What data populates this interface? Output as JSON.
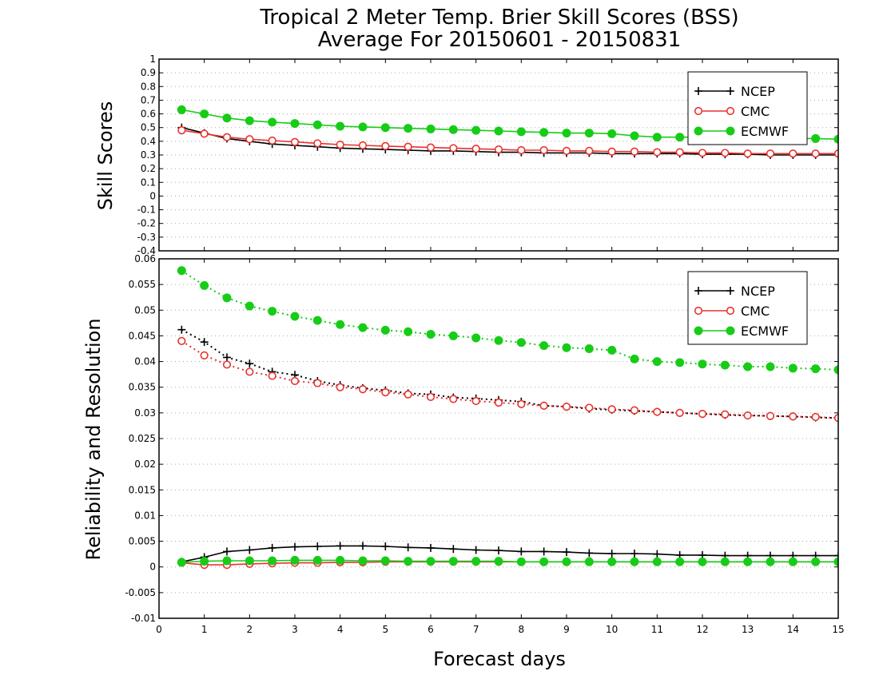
{
  "chart_data": [
    {
      "type": "line",
      "title": "Tropical 2 Meter Temp. Brier Skill Scores (BSS)",
      "subtitle": "Average For 20150601 - 20150831",
      "ylabel": "Skill Scores",
      "xlabel": "",
      "xlim": [
        0,
        15
      ],
      "ylim": [
        -0.4,
        1
      ],
      "yticks": [
        "1",
        "0.9",
        "0.8",
        "0.7",
        "0.6",
        "0.5",
        "0.4",
        "0.3",
        "0.2",
        "0.1",
        "0",
        "-0.1",
        "-0.2",
        "-0.3",
        "-0.4"
      ],
      "grid": true,
      "legend": "top-right",
      "x": [
        0.5,
        1,
        1.5,
        2,
        2.5,
        3,
        3.5,
        4,
        4.5,
        5,
        5.5,
        6,
        6.5,
        7,
        7.5,
        8,
        8.5,
        9,
        9.5,
        10,
        10.5,
        11,
        11.5,
        12,
        12.5,
        13,
        13.5,
        14,
        14.5,
        15
      ],
      "series": [
        {
          "name": "NCEP",
          "color": "#000000",
          "marker": "plus",
          "line": "solid",
          "values": [
            0.5,
            0.46,
            0.42,
            0.4,
            0.38,
            0.37,
            0.36,
            0.35,
            0.345,
            0.34,
            0.335,
            0.33,
            0.33,
            0.325,
            0.32,
            0.32,
            0.315,
            0.315,
            0.315,
            0.31,
            0.31,
            0.31,
            0.31,
            0.305,
            0.305,
            0.305,
            0.3,
            0.3,
            0.3,
            0.3
          ]
        },
        {
          "name": "CMC",
          "color": "#e8332f",
          "marker": "open-circle",
          "line": "solid",
          "values": [
            0.48,
            0.455,
            0.43,
            0.415,
            0.405,
            0.395,
            0.385,
            0.375,
            0.37,
            0.365,
            0.36,
            0.355,
            0.35,
            0.345,
            0.34,
            0.335,
            0.335,
            0.33,
            0.33,
            0.325,
            0.325,
            0.32,
            0.32,
            0.315,
            0.315,
            0.31,
            0.31,
            0.31,
            0.31,
            0.31
          ]
        },
        {
          "name": "ECMWF",
          "color": "#17cc17",
          "marker": "filled-circle",
          "line": "solid",
          "values": [
            0.63,
            0.6,
            0.57,
            0.55,
            0.54,
            0.53,
            0.52,
            0.51,
            0.505,
            0.5,
            0.495,
            0.49,
            0.485,
            0.48,
            0.475,
            0.47,
            0.465,
            0.46,
            0.46,
            0.455,
            0.44,
            0.43,
            0.43,
            0.43,
            0.43,
            0.425,
            0.425,
            0.42,
            0.42,
            0.415
          ]
        }
      ]
    },
    {
      "type": "line",
      "title": "",
      "xlabel": "Forecast days",
      "ylabel": "Reliability and Resolution",
      "xlim": [
        0,
        15
      ],
      "ylim": [
        -0.01,
        0.06
      ],
      "xticks": [
        "0",
        "1",
        "2",
        "3",
        "4",
        "5",
        "6",
        "7",
        "8",
        "9",
        "10",
        "11",
        "12",
        "13",
        "14",
        "15"
      ],
      "yticks": [
        "0.06",
        "0.055",
        "0.05",
        "0.045",
        "0.04",
        "0.035",
        "0.03",
        "0.025",
        "0.02",
        "0.015",
        "0.01",
        "0.005",
        "0",
        "-0.005",
        "-0.01"
      ],
      "grid": true,
      "legend": "top-right",
      "x": [
        0.5,
        1,
        1.5,
        2,
        2.5,
        3,
        3.5,
        4,
        4.5,
        5,
        5.5,
        6,
        6.5,
        7,
        7.5,
        8,
        8.5,
        9,
        9.5,
        10,
        10.5,
        11,
        11.5,
        12,
        12.5,
        13,
        13.5,
        14,
        14.5,
        15
      ],
      "series": [
        {
          "name": "NCEP",
          "color": "#000000",
          "marker": "plus",
          "line": "dotted",
          "values": [
            0.0462,
            0.0438,
            0.0408,
            0.0396,
            0.038,
            0.0374,
            0.0362,
            0.0354,
            0.0348,
            0.0344,
            0.0338,
            0.0336,
            0.033,
            0.0328,
            0.0325,
            0.0322,
            0.0314,
            0.0312,
            0.0308,
            0.0306,
            0.0304,
            0.0302,
            0.03,
            0.0298,
            0.0296,
            0.0295,
            0.0294,
            0.0293,
            0.0291,
            0.029
          ]
        },
        {
          "name": "CMC",
          "color": "#e8332f",
          "marker": "open-circle",
          "line": "dotted",
          "values": [
            0.044,
            0.0412,
            0.0394,
            0.038,
            0.0372,
            0.0362,
            0.0358,
            0.035,
            0.0346,
            0.034,
            0.0336,
            0.0331,
            0.0327,
            0.0323,
            0.032,
            0.0317,
            0.0314,
            0.0312,
            0.031,
            0.0307,
            0.0305,
            0.0302,
            0.03,
            0.0298,
            0.0297,
            0.0295,
            0.0294,
            0.0293,
            0.0292,
            0.029
          ]
        },
        {
          "name": "ECMWF",
          "color": "#17cc17",
          "marker": "filled-circle",
          "line": "dotted",
          "values": [
            0.0577,
            0.0548,
            0.0524,
            0.0508,
            0.0498,
            0.0488,
            0.048,
            0.0472,
            0.0466,
            0.0461,
            0.0458,
            0.0453,
            0.045,
            0.0446,
            0.0441,
            0.0437,
            0.0431,
            0.0427,
            0.0425,
            0.0422,
            0.0405,
            0.04,
            0.0398,
            0.0395,
            0.0393,
            0.039,
            0.039,
            0.0387,
            0.0386,
            0.0384
          ]
        },
        {
          "name": "NCEP",
          "color": "#000000",
          "marker": "plus",
          "line": "solid",
          "values": [
            0.001,
            0.0019,
            0.003,
            0.0033,
            0.0037,
            0.0039,
            0.004,
            0.0041,
            0.0041,
            0.004,
            0.0038,
            0.0037,
            0.0035,
            0.0033,
            0.0032,
            0.003,
            0.003,
            0.0029,
            0.0027,
            0.0026,
            0.0026,
            0.0025,
            0.0023,
            0.0023,
            0.0022,
            0.0022,
            0.0022,
            0.0022,
            0.0022,
            0.0022
          ]
        },
        {
          "name": "CMC",
          "color": "#e8332f",
          "marker": "open-circle",
          "line": "solid",
          "values": [
            0.0008,
            0.0004,
            0.0004,
            0.0006,
            0.0007,
            0.0008,
            0.0008,
            0.0009,
            0.0009,
            0.001,
            0.001,
            0.001,
            0.001,
            0.001,
            0.001,
            0.001,
            0.001,
            0.001,
            0.001,
            0.001,
            0.001,
            0.001,
            0.001,
            0.001,
            0.001,
            0.001,
            0.001,
            0.001,
            0.001,
            0.001
          ]
        },
        {
          "name": "ECMWF",
          "color": "#17cc17",
          "marker": "filled-circle",
          "line": "solid",
          "values": [
            0.0009,
            0.0011,
            0.0012,
            0.0012,
            0.0012,
            0.0013,
            0.0013,
            0.0013,
            0.0012,
            0.0012,
            0.0011,
            0.0011,
            0.0011,
            0.0011,
            0.0011,
            0.001,
            0.001,
            0.001,
            0.001,
            0.001,
            0.001,
            0.001,
            0.001,
            0.001,
            0.001,
            0.001,
            0.001,
            0.001,
            0.001,
            0.001
          ]
        }
      ]
    }
  ],
  "legend_entries": [
    "NCEP",
    "CMC",
    "ECMWF"
  ]
}
